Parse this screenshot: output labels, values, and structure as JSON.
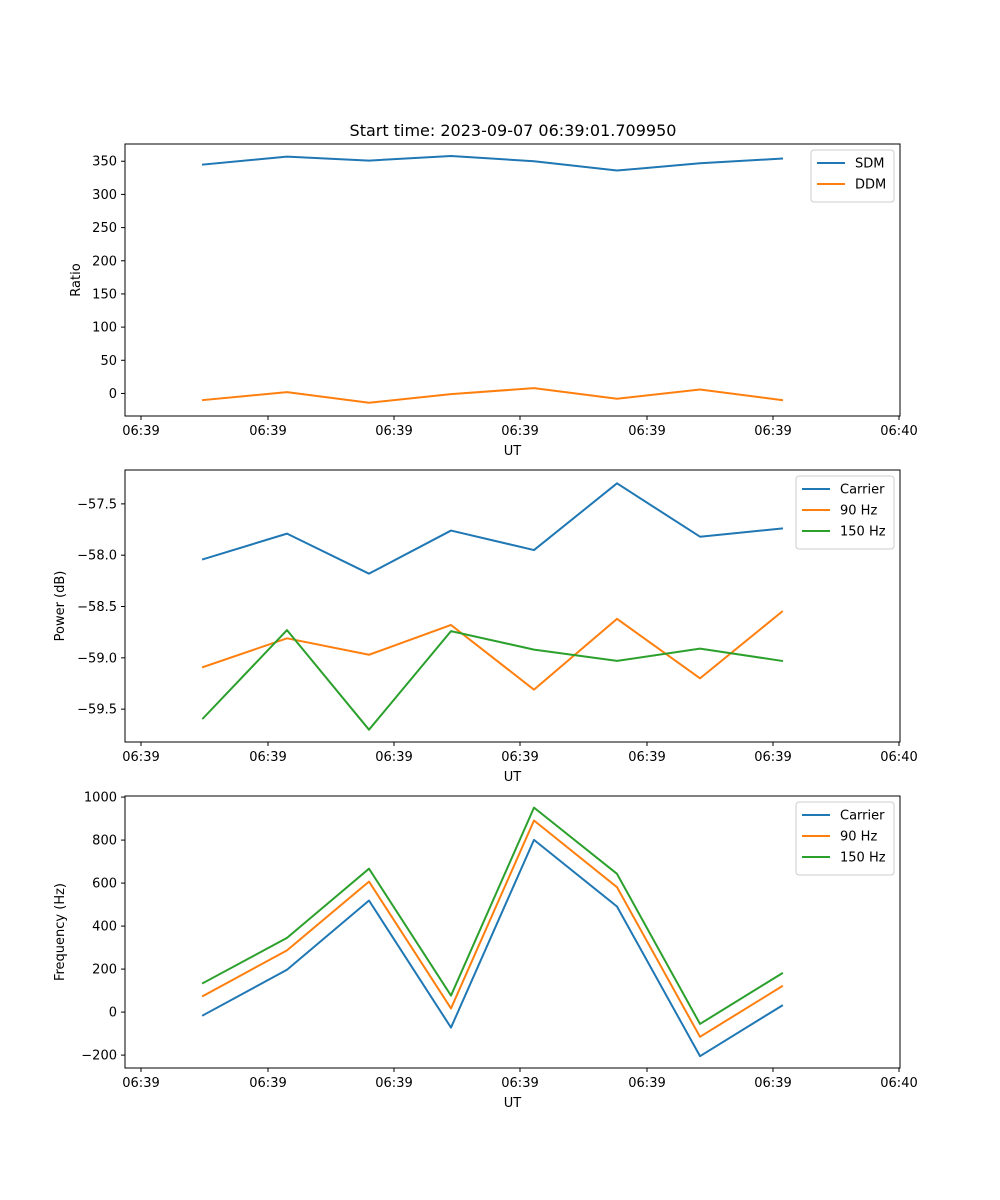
{
  "figure_title": "Start time: 2023-09-07 06:39:01.709950",
  "chart_data": [
    {
      "type": "line",
      "xlabel": "UT",
      "ylabel": "Ratio",
      "xtick_labels": [
        "06:39",
        "06:39",
        "06:39",
        "06:39",
        "06:39",
        "06:39",
        "06:40"
      ],
      "ylim": [
        -34,
        376
      ],
      "yticks": [
        0,
        50,
        100,
        150,
        200,
        250,
        300,
        350
      ],
      "ytick_labels": [
        "0",
        "50",
        "100",
        "150",
        "200",
        "250",
        "300",
        "350"
      ],
      "legend_position": "top-right",
      "series": [
        {
          "name": "SDM",
          "color": "#1f77b4",
          "values": [
            345,
            357,
            351,
            358,
            350,
            336,
            347,
            354
          ]
        },
        {
          "name": "DDM",
          "color": "#ff7f0e",
          "values": [
            -10,
            2,
            -14,
            -1,
            8,
            -8,
            6,
            -10
          ]
        }
      ]
    },
    {
      "type": "line",
      "xlabel": "UT",
      "ylabel": "Power (dB)",
      "xtick_labels": [
        "06:39",
        "06:39",
        "06:39",
        "06:39",
        "06:39",
        "06:39",
        "06:40"
      ],
      "ylim": [
        -59.82,
        -57.17
      ],
      "yticks": [
        -59.5,
        -59.0,
        -58.5,
        -58.0,
        -57.5
      ],
      "ytick_labels": [
        "−59.5",
        "−59.0",
        "−58.5",
        "−58.0",
        "−57.5"
      ],
      "legend_position": "top-right",
      "series": [
        {
          "name": "Carrier",
          "color": "#1f77b4",
          "values": [
            -58.04,
            -57.79,
            -58.18,
            -57.76,
            -57.95,
            -57.3,
            -57.82,
            -57.74
          ]
        },
        {
          "name": "90 Hz",
          "color": "#ff7f0e",
          "values": [
            -59.09,
            -58.81,
            -58.97,
            -58.68,
            -59.31,
            -58.62,
            -59.2,
            -58.55
          ]
        },
        {
          "name": "150 Hz",
          "color": "#2ca02c",
          "values": [
            -59.59,
            -58.73,
            -59.7,
            -58.74,
            -58.92,
            -59.03,
            -58.91,
            -59.03
          ]
        }
      ]
    },
    {
      "type": "line",
      "xlabel": "UT",
      "ylabel": "Frequency (Hz)",
      "xtick_labels": [
        "06:39",
        "06:39",
        "06:39",
        "06:39",
        "06:39",
        "06:39",
        "06:40"
      ],
      "ylim": [
        -260,
        1005
      ],
      "yticks": [
        -200,
        0,
        200,
        400,
        600,
        800,
        1000
      ],
      "ytick_labels": [
        "−200",
        "0",
        "200",
        "400",
        "600",
        "800",
        "1000"
      ],
      "legend_position": "top-right",
      "series": [
        {
          "name": "Carrier",
          "color": "#1f77b4",
          "values": [
            -15,
            197,
            519,
            -72,
            801,
            491,
            -205,
            30
          ]
        },
        {
          "name": "90 Hz",
          "color": "#ff7f0e",
          "values": [
            75,
            287,
            607,
            17,
            891,
            581,
            -115,
            120
          ]
        },
        {
          "name": "150 Hz",
          "color": "#2ca02c",
          "values": [
            135,
            345,
            667,
            77,
            951,
            643,
            -55,
            180
          ]
        }
      ]
    }
  ]
}
